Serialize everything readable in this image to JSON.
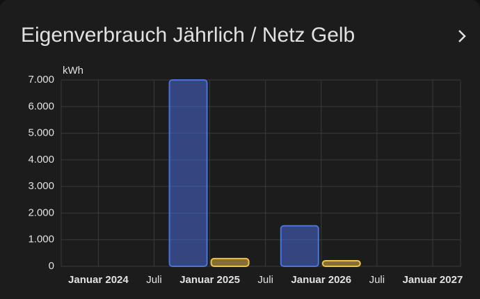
{
  "chart_data": {
    "type": "bar",
    "title": "Eigenverbrauch Jährlich / Netz Gelb",
    "y_label": "kWh",
    "x": [
      "2025-01",
      "2026-01"
    ],
    "series": [
      {
        "color": "#4a72e0",
        "values": [
          7000,
          1520
        ]
      },
      {
        "color": "#f0c04a",
        "values": [
          290,
          210
        ]
      }
    ],
    "ylim": [
      0,
      7000
    ],
    "yticks": [
      {
        "value": 0,
        "label": "0"
      },
      {
        "value": 1000,
        "label": "1.000"
      },
      {
        "value": 2000,
        "label": "2.000"
      },
      {
        "value": 3000,
        "label": "3.000"
      },
      {
        "value": 4000,
        "label": "4.000"
      },
      {
        "value": 5000,
        "label": "5.000"
      },
      {
        "value": 6000,
        "label": "6.000"
      },
      {
        "value": 7000,
        "label": "7.000"
      }
    ],
    "xlim": [
      "2023-09",
      "2027-04"
    ],
    "xticks": [
      {
        "value": "2024-01",
        "label": "Januar 2024"
      },
      {
        "value": "2024-07",
        "label": "Juli"
      },
      {
        "value": "2025-01",
        "label": "Januar 2025"
      },
      {
        "value": "2025-07",
        "label": "Juli"
      },
      {
        "value": "2026-01",
        "label": "Januar 2026"
      },
      {
        "value": "2026-07",
        "label": "Juli"
      },
      {
        "value": "2027-01",
        "label": "Januar 2027"
      }
    ],
    "grid": true
  }
}
